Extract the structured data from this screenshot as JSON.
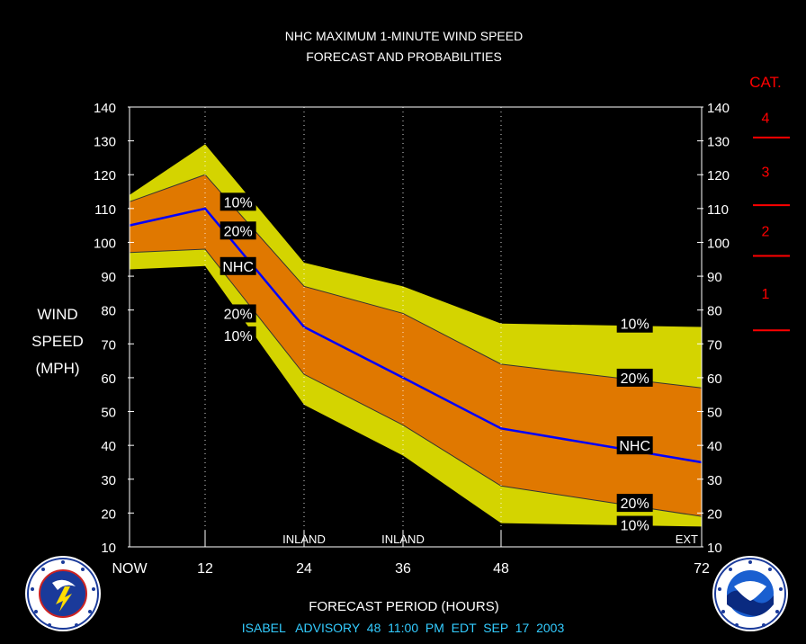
{
  "chart_data": {
    "type": "area",
    "title": "NHC MAXIMUM 1-MINUTE WIND SPEED",
    "subtitle": "FORECAST AND PROBABILITIES",
    "ylabel_lines": [
      "WIND",
      "SPEED",
      "(MPH)"
    ],
    "xlabel": "FORECAST PERIOD (HOURS)",
    "footer": "ISABEL   ADVISORY  48  11:00  PM  EDT  SEP  17  2003",
    "x": [
      0,
      12,
      24,
      36,
      48,
      72
    ],
    "x_tick_labels": [
      "NOW",
      "12",
      "24",
      "36",
      "48",
      "72"
    ],
    "ylim": [
      10,
      140
    ],
    "y_ticks": [
      10,
      20,
      30,
      40,
      50,
      60,
      70,
      80,
      90,
      100,
      110,
      120,
      130,
      140
    ],
    "series": [
      {
        "name": "10%",
        "band": "upper",
        "values": [
          114,
          129,
          94,
          87,
          76,
          75
        ]
      },
      {
        "name": "20%",
        "band": "upper",
        "values": [
          112,
          120,
          87,
          79,
          64,
          57
        ]
      },
      {
        "name": "NHC",
        "values": [
          105,
          110,
          75,
          60,
          45,
          35
        ]
      },
      {
        "name": "20%",
        "band": "lower",
        "values": [
          97,
          98,
          61,
          46,
          28,
          19
        ]
      },
      {
        "name": "10%",
        "band": "lower",
        "values": [
          92,
          93,
          52,
          37,
          17,
          16
        ]
      }
    ],
    "labels_left": [
      {
        "text": "10%",
        "x": 16,
        "y": 112
      },
      {
        "text": "20%",
        "x": 16,
        "y": 103.5
      },
      {
        "text": "NHC",
        "x": 16,
        "y": 93
      },
      {
        "text": "20%",
        "x": 16,
        "y": 79
      },
      {
        "text": "10%",
        "x": 16,
        "y": 72.5
      }
    ],
    "labels_right": [
      {
        "text": "10%",
        "x": 64,
        "y": 76
      },
      {
        "text": "20%",
        "x": 64,
        "y": 60
      },
      {
        "text": "NHC",
        "x": 64,
        "y": 40
      },
      {
        "text": "20%",
        "x": 64,
        "y": 23
      },
      {
        "text": "10%",
        "x": 64,
        "y": 16.5
      }
    ],
    "annotations": [
      {
        "text": "INLAND",
        "x": 24
      },
      {
        "text": "INLAND",
        "x": 36
      },
      {
        "text": "EXT",
        "x": 72
      }
    ],
    "category_scale": {
      "title": "CAT.",
      "thresholds": [
        74,
        96,
        111,
        131
      ],
      "labels": [
        {
          "text": "1",
          "y": 85
        },
        {
          "text": "2",
          "y": 103.5
        },
        {
          "text": "3",
          "y": 121
        },
        {
          "text": "4",
          "y": 137
        }
      ]
    },
    "colors": {
      "outer_band": "#d4d400",
      "inner_band": "#e07800",
      "nhc_line": "#0000ff",
      "category": "#ff0000",
      "footer": "#33ccff"
    }
  }
}
